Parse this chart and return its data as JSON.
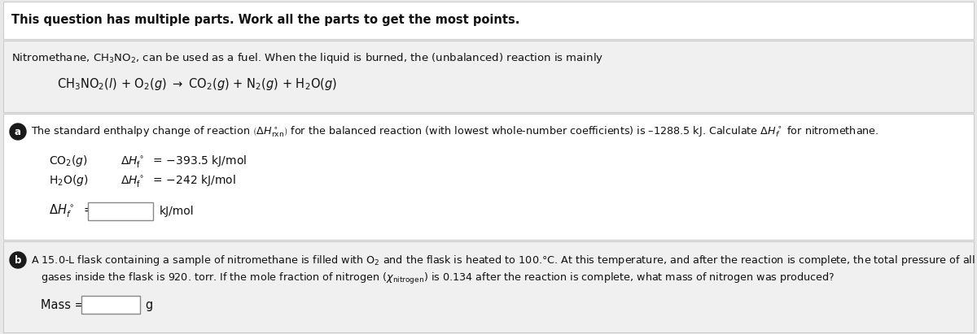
{
  "bg_color": "#e8e8e8",
  "white_bg": "#ffffff",
  "gray_bg": "#ebebeb",
  "border_color": "#c0c0c0",
  "header_text": "This question has multiple parts. Work all the parts to get the most points.",
  "intro_line1": "Nitromethane, CH$_3$NO$_2$, can be used as a fuel. When the liquid is burned, the (unbalanced) reaction is mainly",
  "equation": "CH$_3$NO$_2$($l$) + O$_2$($g$) $\\rightarrow$ CO$_2$($g$) + N$_2$($g$) + H$_2$O($g$)",
  "part_a_text": "The standard enthalpy change of reaction $\\left(\\Delta H^\\circ_{\\mathrm{rxn}}\\right)$ for the balanced reaction (with lowest whole-number coefficients) is –1288.5 kJ. Calculate $\\Delta H^\\circ_f$ for nitromethane.",
  "part_b_text1": "A 15.0-L flask containing a sample of nitromethane is filled with O$_2$ and the flask is heated to 100.°C. At this temperature, and after the reaction is complete, the total pressure of all the",
  "part_b_text2": "gases inside the flask is 920. torr. If the mole fraction of nitrogen ($\\chi_{\\mathrm{nitrogen}}$) is 0.134 after the reaction is complete, what mass of nitrogen was produced?",
  "figsize": [
    12.0,
    4.11
  ],
  "dpi": 100
}
